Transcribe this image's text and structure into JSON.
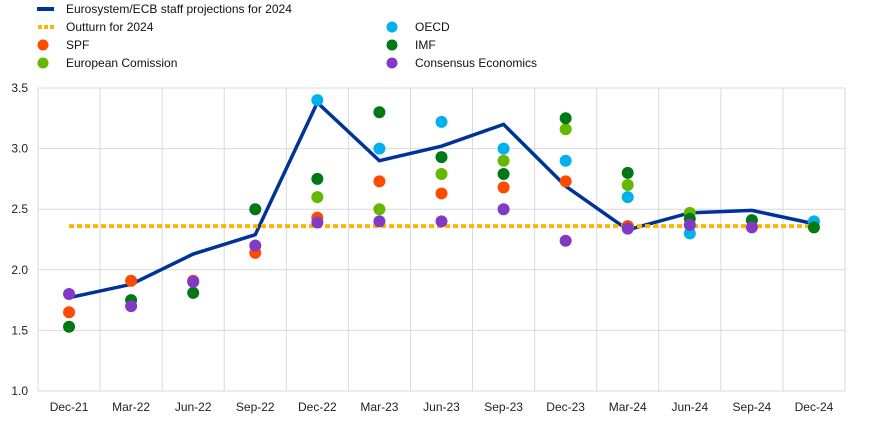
{
  "chart_data": {
    "type": "line",
    "categories": [
      "Dec-21",
      "Mar-22",
      "Jun-22",
      "Sep-22",
      "Dec-22",
      "Mar-23",
      "Jun-23",
      "Sep-23",
      "Dec-23",
      "Mar-24",
      "Jun-24",
      "Sep-24",
      "Dec-24"
    ],
    "ylim": [
      1.0,
      3.5
    ],
    "yticks": [
      "1.0",
      "1.5",
      "2.0",
      "2.5",
      "3.0",
      "3.5"
    ],
    "grid": true,
    "legend_position": "top",
    "lines": [
      {
        "name": "Eurosystem/ECB staff projections for 2024",
        "style": "solid",
        "color": "#003399",
        "values": [
          1.77,
          1.88,
          2.13,
          2.29,
          3.38,
          2.9,
          3.02,
          3.2,
          2.69,
          2.33,
          2.47,
          2.49,
          2.38
        ]
      },
      {
        "name": "Outturn for 2024",
        "style": "dotted",
        "color": "#ffb400",
        "values": [
          2.36,
          2.36,
          2.36,
          2.36,
          2.36,
          2.36,
          2.36,
          2.36,
          2.36,
          2.36,
          2.36,
          2.36,
          2.36
        ]
      }
    ],
    "scatter": [
      {
        "name": "SPF",
        "color": "#ff4b00",
        "values": [
          1.65,
          1.91,
          1.91,
          2.14,
          2.43,
          2.73,
          2.63,
          2.68,
          2.73,
          2.36,
          null,
          null,
          null
        ]
      },
      {
        "name": "European Comission",
        "color": "#65b800",
        "values": [
          null,
          null,
          null,
          null,
          2.6,
          2.5,
          2.79,
          2.9,
          3.16,
          2.7,
          2.47,
          null,
          null
        ]
      },
      {
        "name": "OECD",
        "color": "#00b1ea",
        "values": [
          null,
          null,
          null,
          null,
          3.4,
          3.0,
          3.22,
          3.0,
          2.9,
          2.6,
          2.3,
          null,
          2.4
        ]
      },
      {
        "name": "IMF",
        "color": "#007816",
        "values": [
          1.53,
          1.75,
          1.81,
          2.5,
          2.75,
          3.3,
          2.93,
          2.79,
          3.25,
          2.8,
          2.42,
          2.41,
          2.35
        ]
      },
      {
        "name": "Consensus Economics",
        "color": "#8139c6",
        "values": [
          1.8,
          1.7,
          1.9,
          2.2,
          2.39,
          2.4,
          2.4,
          2.5,
          2.24,
          2.34,
          2.37,
          2.35,
          null
        ]
      }
    ]
  }
}
